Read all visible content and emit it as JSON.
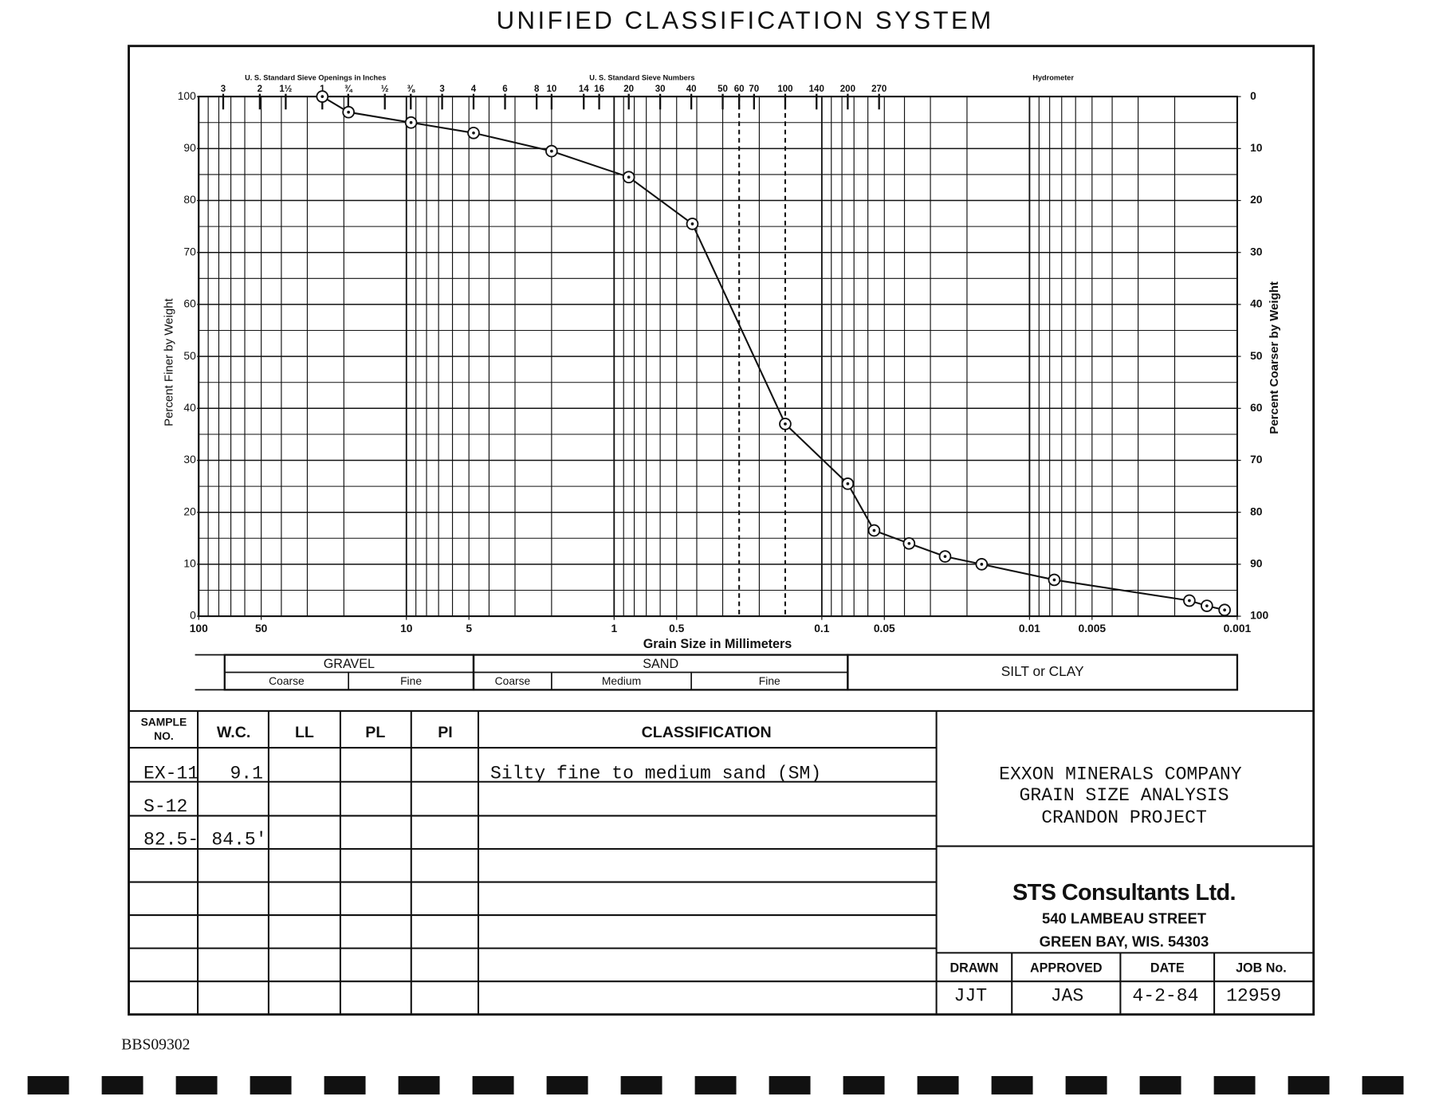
{
  "chart_data": {
    "type": "line",
    "title": "UNIFIED CLASSIFICATION SYSTEM",
    "x_label": "Grain Size in Millimeters",
    "y_label": "Percent Finer by Weight",
    "y2_label": "Percent Coarser by Weight",
    "top_axis_groups": [
      "U. S. Standard Sieve Openings in Inches",
      "U. S. Standard Sieve Numbers",
      "Hydrometer"
    ],
    "x": [
      25.4,
      19,
      9.5,
      4.75,
      2,
      0.85,
      0.42,
      0.15,
      0.075,
      0.056,
      0.038,
      0.0255,
      0.017,
      0.0076,
      0.0017,
      0.0014,
      0.00115
    ],
    "values": [
      100,
      97,
      95,
      93,
      89.5,
      84.5,
      75.5,
      37,
      25.5,
      16.5,
      14,
      11.5,
      10,
      7,
      3,
      2,
      1.2
    ],
    "color": "#111111",
    "x_log": true,
    "xlim": [
      100,
      0.001
    ],
    "xticks": [
      100,
      50,
      10,
      5,
      1,
      0.5,
      0.1,
      0.05,
      0.01,
      0.005,
      0.001
    ],
    "xgrid": [
      100,
      90,
      80,
      70,
      60,
      50,
      40,
      30,
      20,
      10,
      9,
      8,
      7,
      6,
      5,
      4,
      3,
      2,
      1,
      0.9,
      0.8,
      0.7,
      0.6,
      0.5,
      0.4,
      0.3,
      0.2,
      0.1,
      0.09,
      0.08,
      0.07,
      0.06,
      0.05,
      0.04,
      0.03,
      0.02,
      0.01,
      0.009,
      0.008,
      0.007,
      0.006,
      0.005,
      0.004,
      0.003,
      0.002,
      0.001
    ],
    "top_ticks": [
      {
        "value": 76.2,
        "label": "3"
      },
      {
        "value": 50.8,
        "label": "2"
      },
      {
        "value": 38.1,
        "label": "1½"
      },
      {
        "value": 25.4,
        "label": "1"
      },
      {
        "value": 19.05,
        "label": "¾"
      },
      {
        "value": 12.7,
        "label": "½"
      },
      {
        "value": 9.525,
        "label": "⅜"
      },
      {
        "value": 6.73,
        "label": "3"
      },
      {
        "value": 4.75,
        "label": "4"
      },
      {
        "value": 3.35,
        "label": "6"
      },
      {
        "value": 2.36,
        "label": "8"
      },
      {
        "value": 2,
        "label": "10"
      },
      {
        "value": 1.4,
        "label": "14"
      },
      {
        "value": 1.18,
        "label": "16"
      },
      {
        "value": 0.85,
        "label": "20"
      },
      {
        "value": 0.6,
        "label": "30"
      },
      {
        "value": 0.425,
        "label": "40"
      },
      {
        "value": 0.3,
        "label": "50"
      },
      {
        "value": 0.25,
        "label": "60"
      },
      {
        "value": 0.212,
        "label": "70"
      },
      {
        "value": 0.15,
        "label": "100"
      },
      {
        "value": 0.106,
        "label": "140"
      },
      {
        "value": 0.075,
        "label": "200"
      },
      {
        "value": 0.053,
        "label": "270"
      }
    ],
    "dashed_x": [
      0.25,
      0.15
    ],
    "ylim": [
      0,
      100
    ],
    "yticks": [
      0,
      10,
      20,
      30,
      40,
      50,
      60,
      70,
      80,
      90,
      100
    ],
    "ygrid": [
      0,
      5,
      10,
      15,
      20,
      25,
      30,
      35,
      40,
      45,
      50,
      55,
      60,
      65,
      70,
      75,
      80,
      85,
      90,
      95,
      100
    ],
    "y2lim": [
      100,
      0
    ],
    "y2ticks": [
      0,
      10,
      20,
      30,
      40,
      50,
      60,
      70,
      80,
      90,
      100
    ],
    "soil_bands": [
      {
        "label": "GRAVEL",
        "from": 75,
        "to": 4.75,
        "parts": [
          {
            "label": "Coarse",
            "from": 75,
            "to": 19
          },
          {
            "label": "Fine",
            "from": 19,
            "to": 4.75
          }
        ]
      },
      {
        "label": "SAND",
        "from": 4.75,
        "to": 0.075,
        "parts": [
          {
            "label": "Coarse",
            "from": 4.75,
            "to": 2
          },
          {
            "label": "Medium",
            "from": 2,
            "to": 0.425
          },
          {
            "label": "Fine",
            "from": 0.425,
            "to": 0.075
          }
        ]
      },
      {
        "label": "SILT or CLAY",
        "from": 0.075,
        "to": 0.001
      }
    ]
  },
  "table": {
    "header": [
      [
        "SAMPLE",
        "NO."
      ],
      [
        "W.C."
      ],
      [
        "LL"
      ],
      [
        "PL"
      ],
      [
        "PI"
      ],
      [
        "CLASSIFICATION"
      ]
    ],
    "rows": [
      [
        "EX-11",
        "9.1",
        null,
        null,
        null,
        "Silty fine to medium sand (SM)"
      ],
      [
        "S-12",
        null,
        null,
        null,
        null,
        null
      ],
      [
        "82.5-",
        "84.5'",
        null,
        null,
        null,
        null
      ]
    ]
  },
  "project": [
    "EXXON MINERALS COMPANY",
    "GRAIN SIZE ANALYSIS",
    "CRANDON PROJECT"
  ],
  "firm": {
    "name": "STS Consultants Ltd.",
    "street": "540 LAMBEAU STREET",
    "city": "GREEN BAY, WIS. 54303"
  },
  "signoff": {
    "headers": [
      "DRAWN",
      "APPROVED",
      "DATE",
      "JOB No."
    ],
    "values": [
      "JJT",
      "JAS",
      "4-2-84",
      "12959"
    ]
  },
  "document_id": "BBS09302"
}
